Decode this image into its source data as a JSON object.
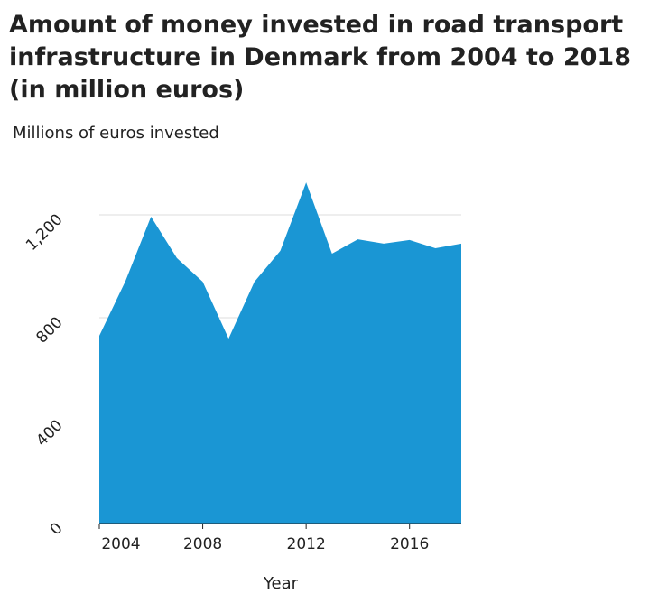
{
  "chart_data": {
    "type": "area",
    "title": [
      "Amount of money invested in road transport",
      "infrastructure in Denmark from 2004 to 2018",
      "(in million euros)"
    ],
    "y_label": "Millions of euros invested",
    "x_label": "Year",
    "x": [
      2004,
      2005,
      2006,
      2007,
      2008,
      2009,
      2010,
      2011,
      2012,
      2013,
      2014,
      2015,
      2016,
      2017,
      2018
    ],
    "values": [
      730,
      940,
      1193,
      1032,
      940,
      719,
      940,
      1060,
      1326,
      1049,
      1105,
      1088,
      1102,
      1070,
      1088
    ],
    "color": "#1a96d4",
    "xlim": [
      2004,
      2018
    ],
    "xticks": [
      2004,
      2008,
      2012,
      2016
    ],
    "ylim": [
      0,
      1400
    ],
    "yticks": [
      0,
      400,
      800,
      {
        "value": 1200,
        "label": "1,200"
      }
    ],
    "grid": true
  }
}
